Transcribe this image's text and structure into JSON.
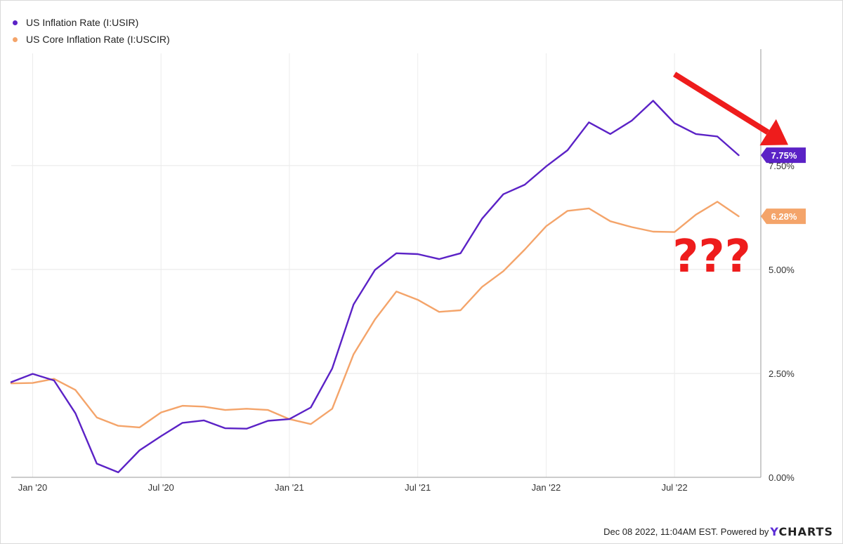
{
  "chart_data": {
    "type": "line",
    "series": [
      {
        "name": "US Inflation Rate (I:USIR)",
        "color": "#5b22c6",
        "end_label": "7.75%",
        "points": [
          [
            "2019-12",
            2.29
          ],
          [
            "2020-01",
            2.49
          ],
          [
            "2020-02",
            2.33
          ],
          [
            "2020-03",
            1.54
          ],
          [
            "2020-04",
            0.33
          ],
          [
            "2020-05",
            0.12
          ],
          [
            "2020-06",
            0.65
          ],
          [
            "2020-07",
            0.99
          ],
          [
            "2020-08",
            1.31
          ],
          [
            "2020-09",
            1.37
          ],
          [
            "2020-10",
            1.18
          ],
          [
            "2020-11",
            1.17
          ],
          [
            "2020-12",
            1.36
          ],
          [
            "2021-01",
            1.4
          ],
          [
            "2021-02",
            1.68
          ],
          [
            "2021-03",
            2.62
          ],
          [
            "2021-04",
            4.16
          ],
          [
            "2021-05",
            4.99
          ],
          [
            "2021-06",
            5.39
          ],
          [
            "2021-07",
            5.37
          ],
          [
            "2021-08",
            5.25
          ],
          [
            "2021-09",
            5.39
          ],
          [
            "2021-10",
            6.22
          ],
          [
            "2021-11",
            6.81
          ],
          [
            "2021-12",
            7.04
          ],
          [
            "2022-01",
            7.48
          ],
          [
            "2022-02",
            7.87
          ],
          [
            "2022-03",
            8.54
          ],
          [
            "2022-04",
            8.26
          ],
          [
            "2022-05",
            8.58
          ],
          [
            "2022-06",
            9.06
          ],
          [
            "2022-07",
            8.52
          ],
          [
            "2022-08",
            8.26
          ],
          [
            "2022-09",
            8.2
          ],
          [
            "2022-10",
            7.75
          ]
        ]
      },
      {
        "name": "US Core Inflation Rate (I:USCIR)",
        "color": "#f4a46a",
        "end_label": "6.28%",
        "points": [
          [
            "2019-12",
            2.26
          ],
          [
            "2020-01",
            2.27
          ],
          [
            "2020-02",
            2.37
          ],
          [
            "2020-03",
            2.1
          ],
          [
            "2020-04",
            1.44
          ],
          [
            "2020-05",
            1.24
          ],
          [
            "2020-06",
            1.2
          ],
          [
            "2020-07",
            1.56
          ],
          [
            "2020-08",
            1.72
          ],
          [
            "2020-09",
            1.7
          ],
          [
            "2020-10",
            1.62
          ],
          [
            "2020-11",
            1.65
          ],
          [
            "2020-12",
            1.62
          ],
          [
            "2021-01",
            1.4
          ],
          [
            "2021-02",
            1.28
          ],
          [
            "2021-03",
            1.65
          ],
          [
            "2021-04",
            2.96
          ],
          [
            "2021-05",
            3.8
          ],
          [
            "2021-06",
            4.47
          ],
          [
            "2021-07",
            4.27
          ],
          [
            "2021-08",
            3.98
          ],
          [
            "2021-09",
            4.02
          ],
          [
            "2021-10",
            4.58
          ],
          [
            "2021-11",
            4.96
          ],
          [
            "2021-12",
            5.48
          ],
          [
            "2022-01",
            6.04
          ],
          [
            "2022-02",
            6.41
          ],
          [
            "2022-03",
            6.47
          ],
          [
            "2022-04",
            6.16
          ],
          [
            "2022-05",
            6.02
          ],
          [
            "2022-06",
            5.91
          ],
          [
            "2022-07",
            5.9
          ],
          [
            "2022-08",
            6.32
          ],
          [
            "2022-09",
            6.63
          ],
          [
            "2022-10",
            6.28
          ]
        ]
      }
    ],
    "x_ticks": [
      {
        "date": "2020-01",
        "label": "Jan '20"
      },
      {
        "date": "2020-07",
        "label": "Jul '20"
      },
      {
        "date": "2021-01",
        "label": "Jan '21"
      },
      {
        "date": "2021-07",
        "label": "Jul '21"
      },
      {
        "date": "2022-01",
        "label": "Jan '22"
      },
      {
        "date": "2022-07",
        "label": "Jul '22"
      }
    ],
    "xlim": [
      "2019-12",
      "2022-11"
    ],
    "y_ticks": [
      {
        "value": 0,
        "label": "0.00%"
      },
      {
        "value": 2.5,
        "label": "2.50%"
      },
      {
        "value": 5,
        "label": "5.00%"
      },
      {
        "value": 7.5,
        "label": "7.50%"
      }
    ],
    "ylim": [
      0,
      10.2
    ],
    "y_axis_side": "right",
    "grid": true,
    "legend_position": "top-left",
    "annotations": {
      "text": "???",
      "text_color": "#ee1c1c",
      "arrow": {
        "color": "#ee1c1c",
        "from": [
          "2022-07",
          9.7
        ],
        "to": [
          "2022-11",
          8.2
        ]
      }
    },
    "title": "",
    "xlabel": "",
    "ylabel": ""
  },
  "footer": {
    "timestamp": "Dec 08 2022, 11:04AM EST. Powered by",
    "brand_y": "Y",
    "brand_rest": "CHARTS"
  }
}
